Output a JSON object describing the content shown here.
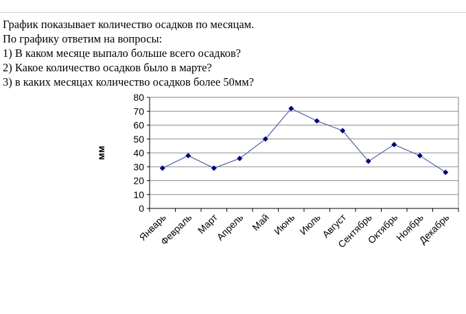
{
  "question": {
    "lines": [
      "График показывает количество осадков по месяцам.",
      "По графику ответим на вопросы:",
      "1) В каком месяце выпало больше всего осадков?",
      "2) Какое количество осадков было в марте?",
      "3) в каких месяцах количество осадков более 50мм?"
    ]
  },
  "chart_data": {
    "type": "line",
    "title": "",
    "xlabel": "",
    "ylabel": "мм",
    "categories": [
      "Январь",
      "Февраль",
      "Март",
      "Апрель",
      "Май",
      "Июнь",
      "Июль",
      "Август",
      "Сентябрь",
      "Октябрь",
      "Ноябрь",
      "Декабрь"
    ],
    "series": [
      {
        "values": [
          29,
          38,
          29,
          36,
          50,
          72,
          63,
          56,
          34,
          46,
          38,
          26
        ]
      }
    ],
    "ylim": [
      0,
      80
    ],
    "yticks": [
      0,
      10,
      20,
      30,
      40,
      50,
      60,
      70,
      80
    ],
    "grid": true,
    "legend": "none",
    "colors": {
      "line": "#4f5fa8",
      "marker": "#000080",
      "grid": "#8c8c8c"
    }
  }
}
